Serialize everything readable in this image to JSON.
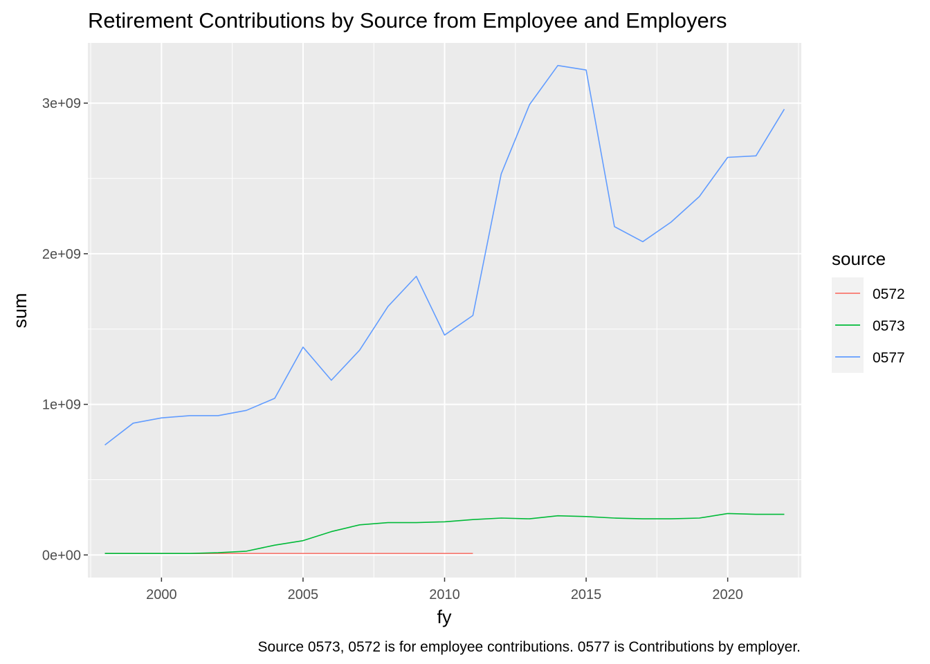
{
  "chart_data": {
    "type": "line",
    "title": "Retirement Contributions by Source from Employee and Employers",
    "xlabel": "fy",
    "ylabel": "sum",
    "caption": "Source 0573, 0572 is for employee contributions. 0577 is Contributions by employer.",
    "xlim": [
      1997.4,
      2022.6
    ],
    "ylim": [
      -150000000,
      3400000000
    ],
    "x_ticks": [
      2000,
      2005,
      2010,
      2015,
      2020
    ],
    "x_tick_labels": [
      "2000",
      "2005",
      "2010",
      "2015",
      "2020"
    ],
    "y_ticks": [
      0,
      1000000000,
      2000000000,
      3000000000
    ],
    "y_tick_labels": [
      "0e+00",
      "1e+09",
      "2e+09",
      "3e+09"
    ],
    "grid": true,
    "legend": {
      "title": "source",
      "position": "right"
    },
    "series": [
      {
        "name": "0572",
        "color": "#F8766D",
        "x": [
          1998,
          1999,
          2000,
          2001,
          2002,
          2003,
          2004,
          2005,
          2006,
          2007,
          2008,
          2009,
          2010,
          2011
        ],
        "values": [
          10000000,
          10000000,
          10000000,
          10000000,
          10000000,
          10000000,
          10000000,
          10000000,
          10000000,
          10000000,
          10000000,
          10000000,
          10000000,
          10000000
        ]
      },
      {
        "name": "0573",
        "color": "#00BA38",
        "x": [
          1998,
          1999,
          2000,
          2001,
          2002,
          2003,
          2004,
          2005,
          2006,
          2007,
          2008,
          2009,
          2010,
          2011,
          2012,
          2013,
          2014,
          2015,
          2016,
          2017,
          2018,
          2019,
          2020,
          2021,
          2022
        ],
        "values": [
          10000000,
          10000000,
          10000000,
          10000000,
          15000000,
          25000000,
          65000000,
          95000000,
          155000000,
          200000000,
          215000000,
          215000000,
          220000000,
          235000000,
          245000000,
          240000000,
          260000000,
          255000000,
          245000000,
          240000000,
          240000000,
          245000000,
          275000000,
          270000000,
          270000000
        ]
      },
      {
        "name": "0577",
        "color": "#619CFF",
        "x": [
          1998,
          1999,
          2000,
          2001,
          2002,
          2003,
          2004,
          2005,
          2006,
          2007,
          2008,
          2009,
          2010,
          2011,
          2012,
          2013,
          2014,
          2015,
          2016,
          2017,
          2018,
          2019,
          2020,
          2021,
          2022
        ],
        "values": [
          730000000,
          875000000,
          910000000,
          925000000,
          925000000,
          960000000,
          1040000000,
          1380000000,
          1160000000,
          1360000000,
          1650000000,
          1850000000,
          1460000000,
          1590000000,
          2530000000,
          2990000000,
          3250000000,
          3220000000,
          2180000000,
          2080000000,
          2210000000,
          2380000000,
          2640000000,
          2650000000,
          2960000000
        ]
      }
    ]
  }
}
